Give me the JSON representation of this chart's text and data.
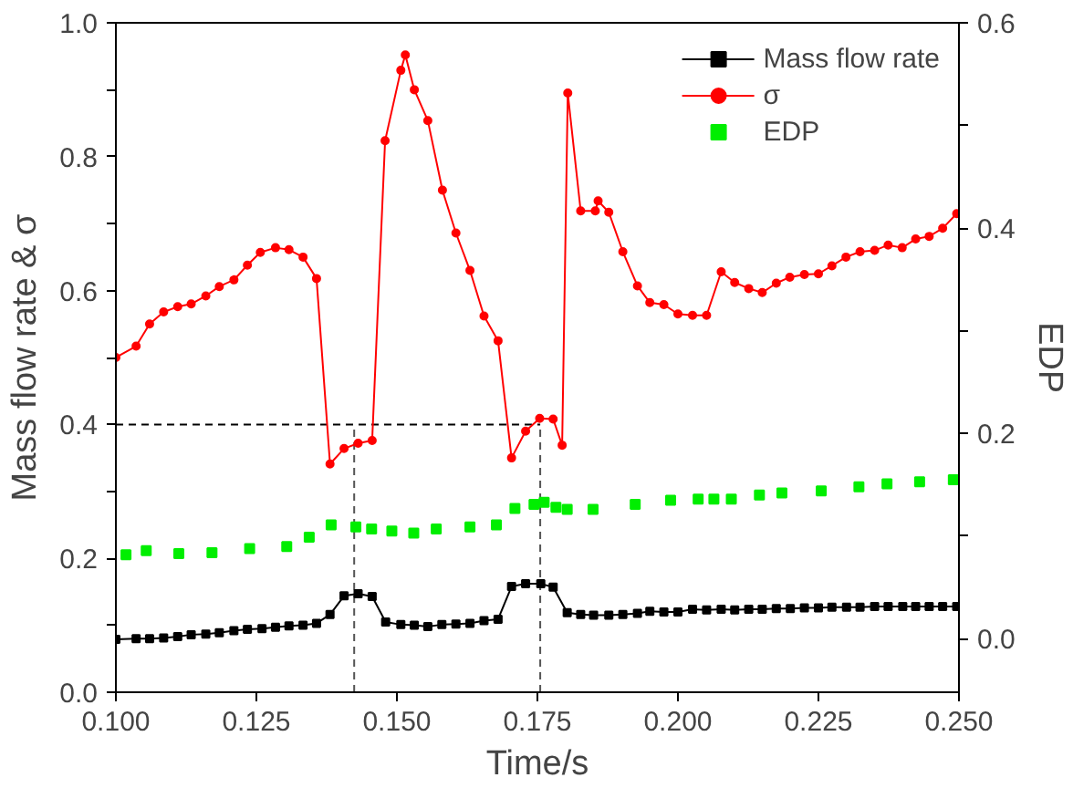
{
  "chart_data": {
    "type": "line",
    "xlabel": "Time/s",
    "ylabel": "Mass flow rate & σ",
    "y2label": "EDP",
    "xlim": [
      0.1,
      0.25
    ],
    "xticks": [
      {
        "value": 0.1,
        "label": "0.100"
      },
      {
        "value": 0.125,
        "label": "0.125"
      },
      {
        "value": 0.15,
        "label": "0.150"
      },
      {
        "value": 0.175,
        "label": "0.175"
      },
      {
        "value": 0.2,
        "label": "0.200"
      },
      {
        "value": 0.225,
        "label": "0.225"
      },
      {
        "value": 0.25,
        "label": "0.250"
      }
    ],
    "ylim": [
      0,
      1
    ],
    "yticks": [
      {
        "value": 0,
        "label": "0.0"
      },
      {
        "value": 0.1,
        "label": null
      },
      {
        "value": 0.2,
        "label": "0.2"
      },
      {
        "value": 0.3,
        "label": null
      },
      {
        "value": 0.4,
        "label": "0.4"
      },
      {
        "value": 0.5,
        "label": null
      },
      {
        "value": 0.6,
        "label": "0.6"
      },
      {
        "value": 0.7,
        "label": null
      },
      {
        "value": 0.8,
        "label": "0.8"
      },
      {
        "value": 0.9,
        "label": null
      },
      {
        "value": 1,
        "label": "1.0"
      }
    ],
    "y2lim": [
      -0.052,
      0.6
    ],
    "y2ticks": [
      {
        "value": 0,
        "label": "0.0"
      },
      {
        "value": 0.1,
        "label": null
      },
      {
        "value": 0.2,
        "label": "0.2"
      },
      {
        "value": 0.3,
        "label": null
      },
      {
        "value": 0.4,
        "label": "0.4"
      },
      {
        "value": 0.5,
        "label": null
      },
      {
        "value": 0.6,
        "label": "0.6"
      }
    ],
    "grid": false,
    "legend": "top right",
    "ref_lines": [
      {
        "axis": "y",
        "value": 0.4,
        "color": "#000000",
        "line_style": "dashed"
      },
      {
        "axis": "x",
        "value": 0.1424,
        "color": "#555555",
        "line_style": "dashed"
      },
      {
        "axis": "x",
        "value": 0.1755,
        "color": "#555555",
        "line_style": "dashed"
      }
    ],
    "series": [
      {
        "name": "Mass flow rate",
        "color": "#000000",
        "marker": "square",
        "x": [
          0.1,
          0.1036,
          0.106,
          0.1085,
          0.111,
          0.1134,
          0.116,
          0.1184,
          0.121,
          0.1234,
          0.126,
          0.1284,
          0.1308,
          0.1333,
          0.1357,
          0.1381,
          0.1406,
          0.1431,
          0.1456,
          0.148,
          0.1507,
          0.1531,
          0.1555,
          0.158,
          0.1605,
          0.163,
          0.1655,
          0.168,
          0.1704,
          0.1729,
          0.1756,
          0.1778,
          0.1803,
          0.1827,
          0.185,
          0.1877,
          0.1902,
          0.1928,
          0.195,
          0.1975,
          0.2,
          0.2026,
          0.2051,
          0.2077,
          0.2101,
          0.2126,
          0.215,
          0.2175,
          0.22,
          0.2225,
          0.225,
          0.2274,
          0.23,
          0.2324,
          0.235,
          0.2374,
          0.24,
          0.2423,
          0.2447,
          0.2471,
          0.2496
        ],
        "values": [
          0.079,
          0.08,
          0.08,
          0.081,
          0.083,
          0.086,
          0.087,
          0.089,
          0.092,
          0.094,
          0.095,
          0.097,
          0.099,
          0.1,
          0.103,
          0.116,
          0.144,
          0.147,
          0.143,
          0.105,
          0.101,
          0.1,
          0.098,
          0.101,
          0.102,
          0.103,
          0.107,
          0.109,
          0.158,
          0.162,
          0.162,
          0.157,
          0.119,
          0.116,
          0.115,
          0.115,
          0.116,
          0.118,
          0.121,
          0.12,
          0.12,
          0.124,
          0.123,
          0.124,
          0.123,
          0.124,
          0.124,
          0.125,
          0.125,
          0.126,
          0.126,
          0.127,
          0.127,
          0.127,
          0.128,
          0.128,
          0.128,
          0.128,
          0.128,
          0.128,
          0.128
        ]
      },
      {
        "name": "σ",
        "color": "#ff0000",
        "marker": "circle",
        "x": [
          0.1,
          0.1036,
          0.106,
          0.1085,
          0.111,
          0.1134,
          0.116,
          0.1184,
          0.121,
          0.1234,
          0.1257,
          0.1284,
          0.1308,
          0.1333,
          0.1357,
          0.1381,
          0.1406,
          0.1431,
          0.1456,
          0.1479,
          0.1507,
          0.1515,
          0.1531,
          0.1555,
          0.1581,
          0.1605,
          0.163,
          0.1655,
          0.168,
          0.1704,
          0.1729,
          0.1754,
          0.1778,
          0.1794,
          0.1804,
          0.1827,
          0.1853,
          0.1858,
          0.1877,
          0.1902,
          0.1928,
          0.195,
          0.1975,
          0.2,
          0.2026,
          0.2051,
          0.2077,
          0.2101,
          0.2126,
          0.215,
          0.2175,
          0.2199,
          0.2225,
          0.225,
          0.2274,
          0.2299,
          0.2324,
          0.235,
          0.2374,
          0.2399,
          0.2423,
          0.2447,
          0.2471,
          0.2496
        ],
        "values": [
          0.5,
          0.517,
          0.55,
          0.568,
          0.576,
          0.58,
          0.592,
          0.606,
          0.616,
          0.638,
          0.657,
          0.664,
          0.661,
          0.65,
          0.618,
          0.341,
          0.364,
          0.372,
          0.376,
          0.824,
          0.929,
          0.952,
          0.9,
          0.854,
          0.75,
          0.686,
          0.63,
          0.562,
          0.525,
          0.35,
          0.39,
          0.409,
          0.408,
          0.369,
          0.895,
          0.719,
          0.719,
          0.734,
          0.717,
          0.658,
          0.607,
          0.582,
          0.579,
          0.565,
          0.563,
          0.563,
          0.628,
          0.612,
          0.603,
          0.597,
          0.611,
          0.62,
          0.624,
          0.625,
          0.637,
          0.65,
          0.658,
          0.66,
          0.668,
          0.664,
          0.677,
          0.681,
          0.693,
          0.715
        ]
      },
      {
        "name": "EDP",
        "color": "#00ee00",
        "type": "scatter",
        "marker": "square",
        "axis": "y2",
        "x": [
          0.1018,
          0.1054,
          0.1112,
          0.1171,
          0.1238,
          0.1304,
          0.1344,
          0.1383,
          0.1427,
          0.1455,
          0.1491,
          0.153,
          0.157,
          0.163,
          0.1677,
          0.171,
          0.1744,
          0.1762,
          0.1783,
          0.1803,
          0.1849,
          0.1924,
          0.1987,
          0.2036,
          0.2064,
          0.2095,
          0.2145,
          0.2185,
          0.2255,
          0.2322,
          0.2372,
          0.243,
          0.249
        ],
        "values": [
          0.082,
          0.086,
          0.083,
          0.084,
          0.088,
          0.09,
          0.099,
          0.111,
          0.109,
          0.107,
          0.105,
          0.103,
          0.107,
          0.109,
          0.111,
          0.127,
          0.131,
          0.133,
          0.128,
          0.126,
          0.126,
          0.131,
          0.135,
          0.136,
          0.136,
          0.136,
          0.14,
          0.142,
          0.144,
          0.148,
          0.151,
          0.153,
          0.155
        ]
      }
    ]
  }
}
